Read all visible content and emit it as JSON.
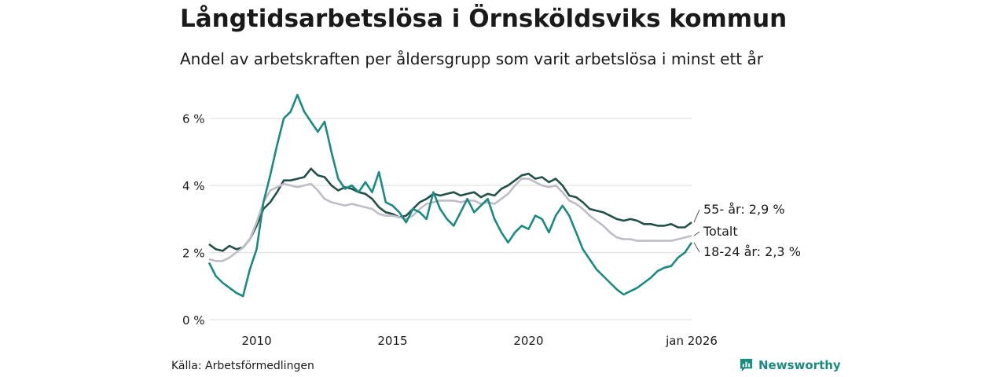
{
  "header": {
    "title": "Långtidsarbetslösa i Örnsköldsviks kommun",
    "subtitle": "Andel av arbetskraften per åldersgrupp som varit arbetslösa i minst ett år"
  },
  "footer": {
    "source": "Källa: Arbetsförmedlingen",
    "brand": "Newsworthy"
  },
  "colors": {
    "dark": "#24504a",
    "teal": "#1b8a80",
    "grey": "#c0bcc8",
    "grid": "#dddddd",
    "text": "#1a1a1a"
  },
  "chart_data": {
    "type": "line",
    "title": "Långtidsarbetslösa i Örnsköldsviks kommun",
    "subtitle": "Andel av arbetskraften per åldersgrupp som varit arbetslösa i minst ett år",
    "xlabel": "",
    "ylabel": "",
    "xlim": [
      2008.25,
      2026.0
    ],
    "ylim": [
      0,
      7
    ],
    "y_ticks": [
      0,
      2,
      4,
      6
    ],
    "y_tick_labels": [
      "0 %",
      "2 %",
      "4 %",
      "6 %"
    ],
    "x_ticks": [
      2010,
      2015,
      2020,
      2026.0
    ],
    "x_tick_labels": [
      "2010",
      "2015",
      "2020",
      "jan 2026"
    ],
    "grid": true,
    "series": [
      {
        "name": "55- år",
        "label": "55- år: 2,9 %",
        "color_key": "dark",
        "x": [
          2008.25,
          2008.5,
          2008.75,
          2009.0,
          2009.25,
          2009.5,
          2009.75,
          2010.0,
          2010.25,
          2010.5,
          2010.75,
          2011.0,
          2011.25,
          2011.5,
          2011.75,
          2012.0,
          2012.25,
          2012.5,
          2012.75,
          2013.0,
          2013.25,
          2013.5,
          2013.75,
          2014.0,
          2014.25,
          2014.5,
          2014.75,
          2015.0,
          2015.25,
          2015.5,
          2015.75,
          2016.0,
          2016.25,
          2016.5,
          2016.75,
          2017.0,
          2017.25,
          2017.5,
          2017.75,
          2018.0,
          2018.25,
          2018.5,
          2018.75,
          2019.0,
          2019.25,
          2019.5,
          2019.75,
          2020.0,
          2020.25,
          2020.5,
          2020.75,
          2021.0,
          2021.25,
          2021.5,
          2021.75,
          2022.0,
          2022.25,
          2022.5,
          2022.75,
          2023.0,
          2023.25,
          2023.5,
          2023.75,
          2024.0,
          2024.25,
          2024.5,
          2024.75,
          2025.0,
          2025.25,
          2025.5,
          2025.75,
          2026.0
        ],
        "values": [
          2.25,
          2.1,
          2.05,
          2.2,
          2.1,
          2.15,
          2.4,
          2.8,
          3.3,
          3.5,
          3.8,
          4.15,
          4.15,
          4.2,
          4.25,
          4.5,
          4.3,
          4.25,
          4.0,
          3.85,
          3.95,
          3.9,
          3.8,
          3.75,
          3.6,
          3.35,
          3.2,
          3.15,
          3.05,
          3.1,
          3.3,
          3.5,
          3.6,
          3.75,
          3.7,
          3.75,
          3.8,
          3.7,
          3.75,
          3.8,
          3.65,
          3.75,
          3.7,
          3.9,
          4.0,
          4.15,
          4.3,
          4.35,
          4.2,
          4.25,
          4.1,
          4.2,
          4.0,
          3.7,
          3.65,
          3.5,
          3.3,
          3.25,
          3.2,
          3.1,
          3.0,
          2.95,
          3.0,
          2.95,
          2.85,
          2.85,
          2.8,
          2.8,
          2.85,
          2.75,
          2.75,
          2.9
        ]
      },
      {
        "name": "Totalt",
        "label": "Totalt",
        "color_key": "grey",
        "x": [
          2008.25,
          2008.5,
          2008.75,
          2009.0,
          2009.25,
          2009.5,
          2009.75,
          2010.0,
          2010.25,
          2010.5,
          2010.75,
          2011.0,
          2011.25,
          2011.5,
          2011.75,
          2012.0,
          2012.25,
          2012.5,
          2012.75,
          2013.0,
          2013.25,
          2013.5,
          2013.75,
          2014.0,
          2014.25,
          2014.5,
          2014.75,
          2015.0,
          2015.25,
          2015.5,
          2015.75,
          2016.0,
          2016.25,
          2016.5,
          2016.75,
          2017.0,
          2017.25,
          2017.5,
          2017.75,
          2018.0,
          2018.25,
          2018.5,
          2018.75,
          2019.0,
          2019.25,
          2019.5,
          2019.75,
          2020.0,
          2020.25,
          2020.5,
          2020.75,
          2021.0,
          2021.25,
          2021.5,
          2021.75,
          2022.0,
          2022.25,
          2022.5,
          2022.75,
          2023.0,
          2023.25,
          2023.5,
          2023.75,
          2024.0,
          2024.25,
          2024.5,
          2024.75,
          2025.0,
          2025.25,
          2025.5,
          2025.75,
          2026.0
        ],
        "values": [
          1.8,
          1.75,
          1.75,
          1.85,
          2.0,
          2.15,
          2.4,
          2.9,
          3.5,
          3.85,
          3.95,
          4.05,
          4.0,
          3.95,
          4.0,
          4.05,
          3.85,
          3.6,
          3.5,
          3.45,
          3.4,
          3.45,
          3.4,
          3.35,
          3.3,
          3.15,
          3.1,
          3.1,
          3.05,
          3.0,
          3.1,
          3.3,
          3.45,
          3.5,
          3.55,
          3.55,
          3.55,
          3.5,
          3.55,
          3.55,
          3.45,
          3.5,
          3.45,
          3.6,
          3.75,
          4.0,
          4.2,
          4.2,
          4.1,
          4.0,
          3.95,
          4.0,
          3.8,
          3.55,
          3.45,
          3.3,
          3.1,
          2.95,
          2.8,
          2.6,
          2.45,
          2.4,
          2.4,
          2.35,
          2.35,
          2.35,
          2.35,
          2.35,
          2.35,
          2.4,
          2.45,
          2.5
        ]
      },
      {
        "name": "18-24 år",
        "label": "18-24 år: 2,3 %",
        "color_key": "teal",
        "x": [
          2008.25,
          2008.5,
          2008.75,
          2009.0,
          2009.25,
          2009.5,
          2009.75,
          2010.0,
          2010.25,
          2010.5,
          2010.75,
          2011.0,
          2011.25,
          2011.5,
          2011.75,
          2012.0,
          2012.25,
          2012.5,
          2012.75,
          2013.0,
          2013.25,
          2013.5,
          2013.75,
          2014.0,
          2014.25,
          2014.5,
          2014.75,
          2015.0,
          2015.25,
          2015.5,
          2015.75,
          2016.0,
          2016.25,
          2016.5,
          2016.75,
          2017.0,
          2017.25,
          2017.5,
          2017.75,
          2018.0,
          2018.25,
          2018.5,
          2018.75,
          2019.0,
          2019.25,
          2019.5,
          2019.75,
          2020.0,
          2020.25,
          2020.5,
          2020.75,
          2021.0,
          2021.25,
          2021.5,
          2021.75,
          2022.0,
          2022.25,
          2022.5,
          2022.75,
          2023.0,
          2023.25,
          2023.5,
          2023.75,
          2024.0,
          2024.25,
          2024.5,
          2024.75,
          2025.0,
          2025.25,
          2025.5,
          2025.75,
          2026.0
        ],
        "values": [
          1.7,
          1.3,
          1.1,
          0.95,
          0.8,
          0.7,
          1.5,
          2.1,
          3.5,
          4.3,
          5.2,
          6.0,
          6.2,
          6.7,
          6.2,
          5.9,
          5.6,
          5.9,
          5.0,
          4.2,
          3.9,
          4.0,
          3.8,
          4.1,
          3.8,
          4.4,
          3.5,
          3.4,
          3.2,
          2.9,
          3.3,
          3.2,
          3.0,
          3.8,
          3.3,
          3.0,
          2.8,
          3.2,
          3.6,
          3.2,
          3.4,
          3.6,
          3.0,
          2.6,
          2.3,
          2.6,
          2.8,
          2.7,
          3.1,
          3.0,
          2.6,
          3.1,
          3.4,
          3.1,
          2.6,
          2.1,
          1.8,
          1.5,
          1.3,
          1.1,
          0.9,
          0.75,
          0.85,
          0.95,
          1.1,
          1.25,
          1.45,
          1.55,
          1.6,
          1.85,
          2.0,
          2.3
        ]
      }
    ]
  }
}
